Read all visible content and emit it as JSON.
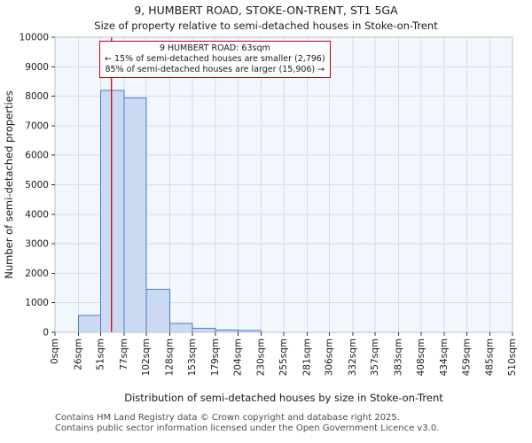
{
  "title": {
    "line1": "9, HUMBERT ROAD, STOKE-ON-TRENT, ST1 5GA",
    "line2": "Size of property relative to semi-detached houses in Stoke-on-Trent"
  },
  "chart_data": {
    "type": "bar",
    "title": "9, HUMBERT ROAD, STOKE-ON-TRENT, ST1 5GA",
    "subtitle": "Size of property relative to semi-detached houses in Stoke-on-Trent",
    "xlabel": "Distribution of semi-detached houses by size in Stoke-on-Trent",
    "ylabel": "Number of semi-detached properties",
    "ylim": [
      0,
      10000
    ],
    "y_ticks": [
      0,
      1000,
      2000,
      3000,
      4000,
      5000,
      6000,
      7000,
      8000,
      9000,
      10000
    ],
    "bin_edges": [
      0,
      26,
      51,
      77,
      102,
      128,
      153,
      179,
      204,
      230,
      255,
      281,
      306,
      332,
      357,
      383,
      408,
      434,
      459,
      485,
      510
    ],
    "x_tick_labels": [
      "0sqm",
      "26sqm",
      "51sqm",
      "77sqm",
      "102sqm",
      "128sqm",
      "153sqm",
      "179sqm",
      "204sqm",
      "230sqm",
      "255sqm",
      "281sqm",
      "306sqm",
      "332sqm",
      "357sqm",
      "383sqm",
      "408sqm",
      "434sqm",
      "459sqm",
      "485sqm",
      "510sqm"
    ],
    "values": [
      0,
      570,
      8200,
      7950,
      1450,
      300,
      130,
      80,
      60,
      0,
      0,
      0,
      0,
      0,
      0,
      0,
      0,
      0,
      0,
      0
    ],
    "grid": true,
    "legend": "none",
    "marker": {
      "value": 63,
      "color": "#cc0000"
    },
    "annotation": {
      "line1": "9 HUMBERT ROAD: 63sqm",
      "line2": "← 15% of semi-detached houses are smaller (2,796)",
      "line3": "85% of semi-detached houses are larger (15,906) →"
    },
    "colors": {
      "bar_fill": "#ccd9f2",
      "bar_stroke": "#4d7ebf",
      "plot_bg": "#f2f6fd",
      "grid": "#d4ddef",
      "marker": "#cc0000"
    }
  },
  "footer": {
    "line1": "Contains HM Land Registry data © Crown copyright and database right 2025.",
    "line2": "Contains public sector information licensed under the Open Government Licence v3.0."
  }
}
